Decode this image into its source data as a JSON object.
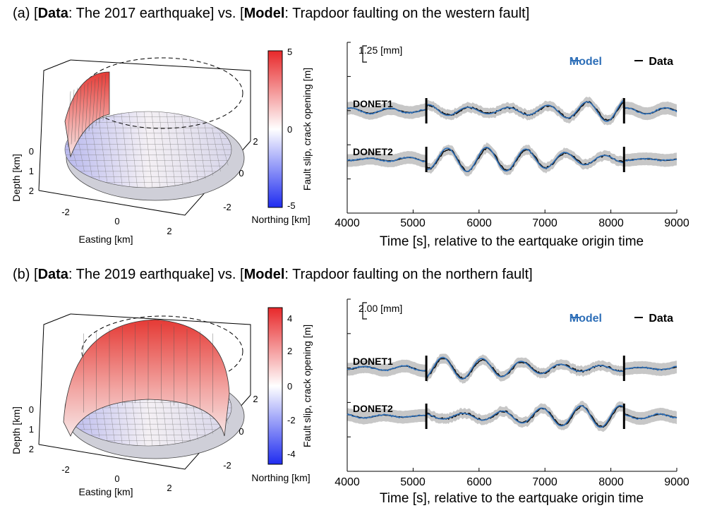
{
  "panels": [
    {
      "id": "a",
      "title": {
        "prefix": "(a) [",
        "data_word": "Data",
        "data_text": ": The 2017 earthquake] vs. [",
        "model_word": "Model",
        "model_text": ": Trapdoor faulting on the western fault]"
      },
      "fault_plot": {
        "xlabel": "Easting [km]",
        "ylabel": "Northing [km]",
        "zlabel": "Depth [km]",
        "x_ticks": [
          "-2",
          "0",
          "2"
        ],
        "y_ticks": [
          "2",
          "0",
          "-2"
        ],
        "z_ticks": [
          "0",
          "1",
          "2"
        ],
        "wall_side": "western",
        "colorbar": {
          "label": "Fault slip, crack opening [m]",
          "ticks": [
            "5",
            "0",
            "-5"
          ]
        }
      },
      "waveform_plot": {
        "scale_bar_label": "1.25 [mm]",
        "legend": {
          "model": "Model",
          "data": "Data"
        },
        "stations": [
          "DONET1",
          "DONET2"
        ],
        "xlabel": "Time [s], relative to the eartquake origin time",
        "x_ticks": [
          "4000",
          "5000",
          "6000",
          "7000",
          "8000",
          "9000"
        ]
      }
    },
    {
      "id": "b",
      "title": {
        "prefix": "(b) [",
        "data_word": "Data",
        "data_text": ": The 2019 earthquake] vs. [",
        "model_word": "Model",
        "model_text": ": Trapdoor faulting on the northern fault]"
      },
      "fault_plot": {
        "xlabel": "Easting [km]",
        "ylabel": "Northing [km]",
        "zlabel": "Depth [km]",
        "x_ticks": [
          "-2",
          "0",
          "2"
        ],
        "y_ticks": [
          "2",
          "0",
          "-2"
        ],
        "z_ticks": [
          "0",
          "1",
          "2"
        ],
        "wall_side": "northern",
        "colorbar": {
          "label": "Fault slip, crack opening [m]",
          "ticks": [
            "4",
            "2",
            "0",
            "-2",
            "-4"
          ]
        }
      },
      "waveform_plot": {
        "scale_bar_label": "2.00 [mm]",
        "legend": {
          "model": "Model",
          "data": "Data"
        },
        "stations": [
          "DONET1",
          "DONET2"
        ],
        "xlabel": "Time [s], relative to the eartquake origin time",
        "x_ticks": [
          "4000",
          "5000",
          "6000",
          "7000",
          "8000",
          "9000"
        ]
      }
    }
  ],
  "chart_data": [
    {
      "type": "line",
      "panel": "a",
      "x_range": [
        4000,
        9000
      ],
      "window_markers_s": [
        5200,
        8200
      ],
      "series": [
        {
          "name": "Model",
          "color": "#2e6fb8"
        },
        {
          "name": "Data",
          "color": "#000000"
        }
      ],
      "stations": [
        "DONET1",
        "DONET2"
      ],
      "colorbar_range_m": [
        -5,
        5
      ]
    },
    {
      "type": "line",
      "panel": "b",
      "x_range": [
        4000,
        9000
      ],
      "window_markers_s": [
        5200,
        8200
      ],
      "series": [
        {
          "name": "Model",
          "color": "#2e6fb8"
        },
        {
          "name": "Data",
          "color": "#000000"
        }
      ],
      "stations": [
        "DONET1",
        "DONET2"
      ],
      "colorbar_range_m": [
        -4.8,
        4.8
      ]
    }
  ]
}
